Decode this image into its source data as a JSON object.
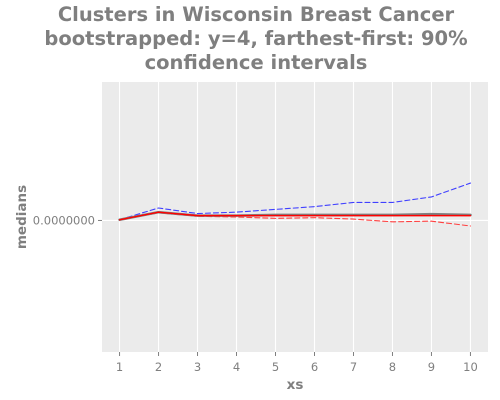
{
  "chart_data": {
    "type": "line",
    "title_lines": [
      "Clusters in Wisconsin Breast Cancer",
      "bootstrapped: y=4, farthest-first: 90%",
      "confidence intervals"
    ],
    "xlabel": "xs",
    "ylabel": "medians",
    "x": [
      1,
      2,
      3,
      4,
      5,
      6,
      7,
      8,
      9,
      10
    ],
    "xlim": [
      0.55,
      10.45
    ],
    "ylim": [
      -0.95,
      1.0
    ],
    "y_tick_values": [
      0
    ],
    "y_tick_labels": [
      "0.0000000"
    ],
    "grid": true,
    "series": [
      {
        "role": "upper",
        "color": "#4040ff",
        "dash": "dashed",
        "values": [
          0.005,
          0.09,
          0.05,
          0.06,
          0.08,
          0.1,
          0.13,
          0.13,
          0.17,
          0.27
        ]
      },
      {
        "role": "median",
        "color": "#808080",
        "dash": "solid",
        "values": [
          0.005,
          0.06,
          0.035,
          0.035,
          0.04,
          0.04,
          0.04,
          0.04,
          0.045,
          0.04
        ]
      },
      {
        "role": "lower",
        "color": "#ff4040",
        "dash": "dashed",
        "values": [
          0.005,
          0.055,
          0.03,
          0.025,
          0.015,
          0.02,
          0.01,
          -0.01,
          -0.005,
          -0.04
        ]
      },
      {
        "role": "baseline",
        "color": "#ff0000",
        "dash": "solid",
        "values": [
          0.005,
          0.06,
          0.035,
          0.035,
          0.035,
          0.035,
          0.035,
          0.035,
          0.035,
          0.035
        ]
      }
    ]
  }
}
